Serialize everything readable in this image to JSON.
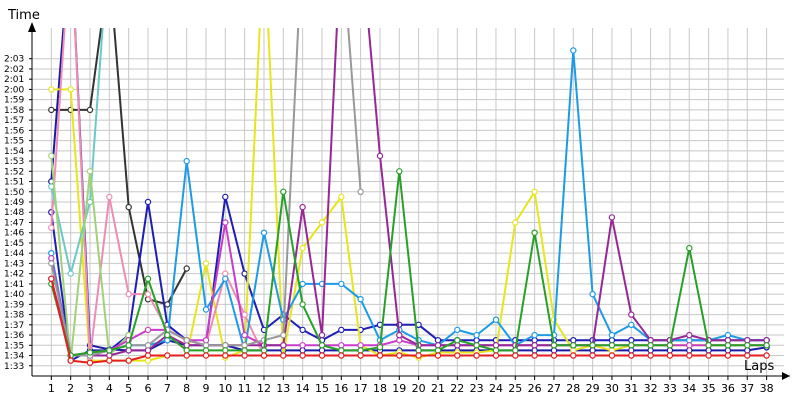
{
  "chart_data": {
    "type": "line",
    "title": "",
    "xlabel": "Laps",
    "ylabel": "Time",
    "y_unit": "min:sec",
    "xlim": [
      0,
      38.9
    ],
    "ylim_seconds": [
      92,
      126
    ],
    "grid": true,
    "legend": "none",
    "x_ticks": [
      1,
      2,
      3,
      4,
      5,
      6,
      7,
      8,
      9,
      10,
      11,
      12,
      13,
      14,
      15,
      16,
      17,
      18,
      19,
      20,
      21,
      22,
      23,
      24,
      25,
      26,
      27,
      28,
      29,
      30,
      31,
      32,
      33,
      34,
      35,
      36,
      37,
      38
    ],
    "x_tick_labels": [
      "1",
      "2",
      "3",
      "4",
      "5",
      "6",
      "7",
      "8",
      "9",
      "10",
      "11",
      "12",
      "13",
      "14",
      "15",
      "16",
      "17",
      "18",
      "19",
      "20",
      "21",
      "22",
      "23",
      "24",
      "25",
      "26",
      "27",
      "28",
      "29",
      "30",
      "31",
      "32",
      "33",
      "34",
      "35",
      "36",
      "37",
      "38"
    ],
    "y_ticks": [
      93,
      94,
      95,
      96,
      97,
      98,
      99,
      100,
      101,
      102,
      103,
      104,
      105,
      106,
      107,
      108,
      109,
      110,
      111,
      112,
      113,
      114,
      115,
      116,
      117,
      118,
      119,
      120,
      121,
      122,
      123
    ],
    "y_tick_labels": [
      "1:33",
      "1:34",
      "1:35",
      "1:36",
      "1:37",
      "1:38",
      "1:39",
      "1:40",
      "1:41",
      "1:42",
      "1:43",
      "1:44",
      "1:45",
      "1:46",
      "1:47",
      "1:48",
      "1:49",
      "1:50",
      "1:51",
      "1:52",
      "1:53",
      "1:54",
      "1:55",
      "1:56",
      "1:57",
      "1:58",
      "1:59",
      "2:00",
      "2:01",
      "2:02",
      "2:03"
    ],
    "series": [
      {
        "color": "#333333",
        "x": [
          1,
          2,
          3,
          4,
          5,
          6,
          7,
          8
        ],
        "y": [
          118,
          118,
          118,
          132,
          108.5,
          99.5,
          99,
          102.5
        ]
      },
      {
        "color": "#1a1aa6",
        "x": [
          1,
          2,
          3,
          4,
          5,
          6,
          7,
          8,
          9,
          10,
          11,
          12,
          13,
          14,
          15,
          16,
          17,
          18,
          19,
          20,
          21,
          22,
          23,
          24,
          25,
          26,
          27,
          28,
          29,
          30,
          31,
          32,
          33,
          34,
          35,
          36,
          37,
          38
        ],
        "y": [
          111,
          135,
          95,
          94.6,
          94.5,
          94.5,
          95.5,
          95,
          95,
          95,
          94.5,
          94.5,
          94.5,
          94.5,
          94.5,
          94.5,
          94.5,
          94.5,
          94.5,
          94.5,
          94.5,
          94.5,
          94.5,
          94.5,
          94.5,
          94.5,
          94.5,
          94.5,
          94.5,
          94.5,
          94.5,
          94.5,
          94.5,
          94.5,
          94.5,
          94.5,
          94.5,
          94.8
        ]
      },
      {
        "color": "#1e1eb4",
        "x": [
          1,
          2,
          3,
          4,
          5,
          6,
          7,
          8,
          9,
          10,
          11,
          12,
          13,
          14,
          15,
          16,
          17,
          18,
          19,
          20,
          21,
          22,
          23,
          24,
          25,
          26,
          27,
          28,
          29,
          30,
          31,
          32,
          33,
          34,
          35,
          36,
          37,
          38
        ],
        "y": [
          108,
          93.5,
          94.5,
          94.5,
          96,
          109,
          97,
          95.5,
          95,
          109.5,
          102,
          96.5,
          98,
          96.5,
          95.5,
          96.5,
          96.5,
          97,
          97,
          97,
          95.5,
          95.5,
          95.5,
          95.5,
          95.5,
          95.5,
          95.5,
          95.5,
          95.5,
          95.5,
          95.5,
          95.5,
          95.5,
          95.5,
          95.5,
          95.5,
          95.5,
          95.5
        ]
      },
      {
        "color": "#e6e61e",
        "x": [
          1,
          2,
          3,
          4,
          5,
          6,
          7,
          8,
          9,
          10,
          11,
          12,
          13,
          14,
          15,
          16,
          17,
          18,
          19,
          20,
          21,
          22,
          23,
          24,
          25,
          26,
          27,
          28,
          29,
          30,
          31,
          32,
          33,
          34,
          35,
          36,
          37,
          38
        ],
        "y": [
          120,
          120,
          93.5,
          93.5,
          93.5,
          93.5,
          94,
          94,
          103,
          93.8,
          94.5,
          135,
          94,
          104.5,
          107,
          109.5,
          95,
          94,
          94.3,
          93.8,
          94.3,
          94.3,
          94.3,
          94.5,
          107,
          110,
          97.5,
          94.5,
          95,
          94.5,
          95,
          95,
          95,
          95,
          95,
          95,
          95,
          95
        ]
      },
      {
        "color": "#f08cb4",
        "x": [
          1,
          2,
          3,
          4,
          5,
          6,
          7,
          8,
          9,
          10,
          11,
          12,
          13,
          14,
          15,
          16,
          17,
          18,
          19,
          20,
          21,
          22,
          23,
          24,
          25,
          26,
          27,
          28,
          29,
          30,
          31,
          32,
          33,
          34,
          35,
          36,
          37,
          38
        ],
        "y": [
          106.5,
          135,
          93.8,
          109.5,
          100,
          100,
          96.5,
          95.5,
          95,
          102,
          98,
          94,
          94,
          94,
          94,
          94,
          94,
          94,
          94,
          94,
          94,
          94,
          94,
          94,
          94,
          94,
          94,
          94,
          94,
          94,
          94,
          94,
          94,
          94,
          94,
          94,
          94,
          94
        ]
      },
      {
        "color": "#6ec8c8",
        "x": [
          1,
          2,
          3,
          4
        ],
        "y": [
          110.5,
          102,
          109,
          135
        ]
      },
      {
        "color": "#a0d278",
        "x": [
          1,
          2,
          3,
          4,
          5
        ],
        "y": [
          113.5,
          93.5,
          112,
          94,
          96
        ]
      },
      {
        "color": "#1e9be6",
        "x": [
          1,
          2,
          3,
          4,
          5,
          6,
          7,
          8,
          9,
          10,
          11,
          12,
          13,
          14,
          15,
          16,
          17,
          18,
          19,
          20,
          21,
          22,
          23,
          24,
          25,
          26,
          27,
          28,
          29,
          30,
          31,
          32,
          33,
          34,
          35,
          36,
          37,
          38
        ],
        "y": [
          104,
          94,
          94,
          94.5,
          95,
          95,
          95.5,
          113,
          98.5,
          101.5,
          94.5,
          106,
          97.5,
          101,
          101,
          101,
          99.5,
          95.5,
          96.5,
          95.5,
          95,
          96.5,
          96,
          97.5,
          95,
          96,
          96,
          123.8,
          100,
          96,
          97,
          95.5,
          95.5,
          95.5,
          95.5,
          96,
          95.5,
          95.5
        ]
      },
      {
        "color": "#c83cc8",
        "x": [
          1,
          2,
          3,
          4,
          5,
          6,
          7,
          8,
          9,
          10,
          11,
          12,
          13,
          14,
          15,
          16,
          17,
          18,
          19,
          20,
          21,
          22,
          23,
          24,
          25,
          26,
          27,
          28,
          29,
          30,
          31,
          32,
          33,
          34,
          35,
          36,
          37,
          38
        ],
        "y": [
          103.5,
          94,
          94.3,
          94.5,
          95.5,
          96.5,
          96.5,
          95.5,
          95.5,
          107,
          96,
          95,
          95,
          95,
          95,
          95,
          95,
          95,
          95.5,
          95,
          95,
          95,
          95,
          95,
          95,
          95,
          95,
          95,
          95,
          95,
          95,
          95,
          95,
          95,
          95,
          95,
          95,
          95
        ]
      },
      {
        "color": "#962896",
        "x": [
          1,
          2,
          3,
          4,
          5,
          6,
          7,
          8,
          9,
          10,
          11,
          12,
          13,
          14,
          15,
          16,
          17,
          18,
          19,
          20,
          21,
          22,
          23,
          24,
          25,
          26,
          27,
          28,
          29,
          30,
          31,
          32,
          33,
          34,
          35,
          36,
          37,
          38
        ],
        "y": [
          101.5,
          94,
          94,
          94,
          94.5,
          94.5,
          96,
          95,
          95,
          95,
          95,
          95,
          95,
          108.5,
          96,
          135,
          135,
          113.5,
          96,
          95,
          95,
          95,
          95,
          95,
          95,
          95,
          95,
          95,
          95,
          107.5,
          98,
          95.5,
          95.5,
          96,
          95.5,
          95.5,
          95.5,
          95.5
        ]
      },
      {
        "color": "#999999",
        "x": [
          1,
          2,
          3,
          4,
          5,
          6,
          7,
          8,
          9,
          10,
          11,
          12,
          13,
          14,
          15,
          16,
          17
        ],
        "y": [
          103,
          94,
          94,
          94.5,
          95,
          95,
          96.5,
          95.5,
          95,
          95,
          95,
          95.5,
          96,
          135,
          135,
          135,
          110
        ]
      },
      {
        "color": "#28a028",
        "x": [
          1,
          2,
          3,
          4,
          5,
          6,
          7,
          8,
          9,
          10,
          11,
          12,
          13,
          14,
          15,
          16,
          17,
          18,
          19,
          20,
          21,
          22,
          23,
          24,
          25,
          26,
          27,
          28,
          29,
          30,
          31,
          32,
          33,
          34,
          35,
          36,
          37,
          38
        ],
        "y": [
          101,
          94,
          94.3,
          94.5,
          95,
          101.5,
          96,
          94.5,
          94.5,
          94.5,
          94.5,
          94.5,
          110,
          99,
          95,
          94.5,
          94.5,
          94.8,
          112,
          94.5,
          94.5,
          95.5,
          95,
          94.5,
          94.5,
          106,
          95,
          95,
          95,
          95,
          95,
          95,
          95,
          104.5,
          95,
          95,
          95,
          95
        ]
      },
      {
        "color": "#e61e1e",
        "x": [
          1,
          2,
          3,
          4,
          5,
          6,
          7,
          8,
          9,
          10,
          11,
          12,
          13,
          14,
          15,
          16,
          17,
          18,
          19,
          20,
          21,
          22,
          23,
          24,
          25,
          26,
          27,
          28,
          29,
          30,
          31,
          32,
          33,
          34,
          35,
          36,
          37,
          38
        ],
        "y": [
          101.5,
          93.5,
          93.3,
          93.5,
          93.5,
          94,
          94,
          94,
          94,
          94,
          94,
          94,
          94,
          94,
          94,
          94,
          94,
          94,
          94,
          94,
          94,
          94,
          94,
          94,
          94,
          94,
          94,
          94,
          94,
          94,
          94,
          94,
          94,
          94,
          94,
          94,
          94,
          94
        ]
      }
    ]
  }
}
